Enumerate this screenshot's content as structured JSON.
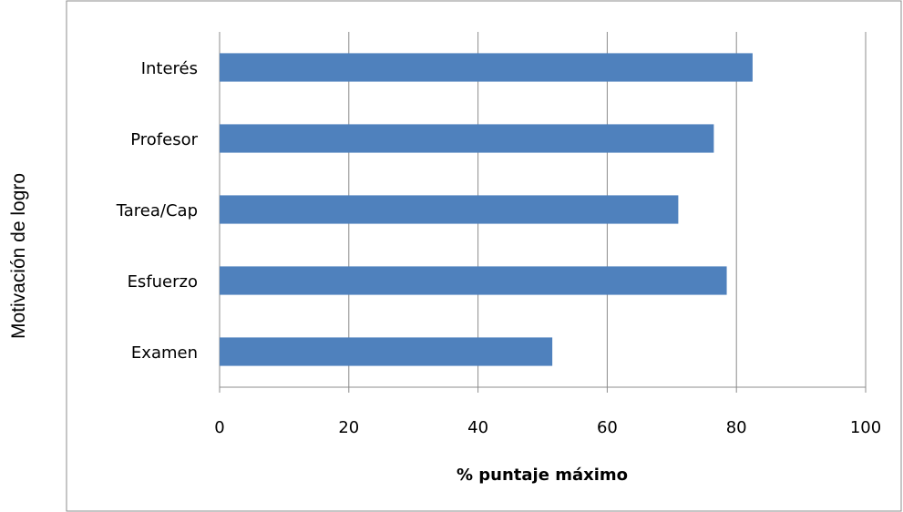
{
  "chart_data": {
    "type": "bar",
    "orientation": "horizontal",
    "categories": [
      "Interés",
      "Profesor",
      "Tarea/Cap",
      "Esfuerzo",
      "Examen"
    ],
    "values": [
      82.5,
      76.5,
      71.0,
      78.5,
      51.5
    ],
    "xlabel": "% puntaje máximo",
    "ylabel": "Motivación de logro",
    "xlim": [
      0,
      100
    ],
    "xticks": [
      0,
      20,
      40,
      60,
      80,
      100
    ],
    "grid": true,
    "bar_color": "#4f81bd",
    "legend": "none"
  }
}
